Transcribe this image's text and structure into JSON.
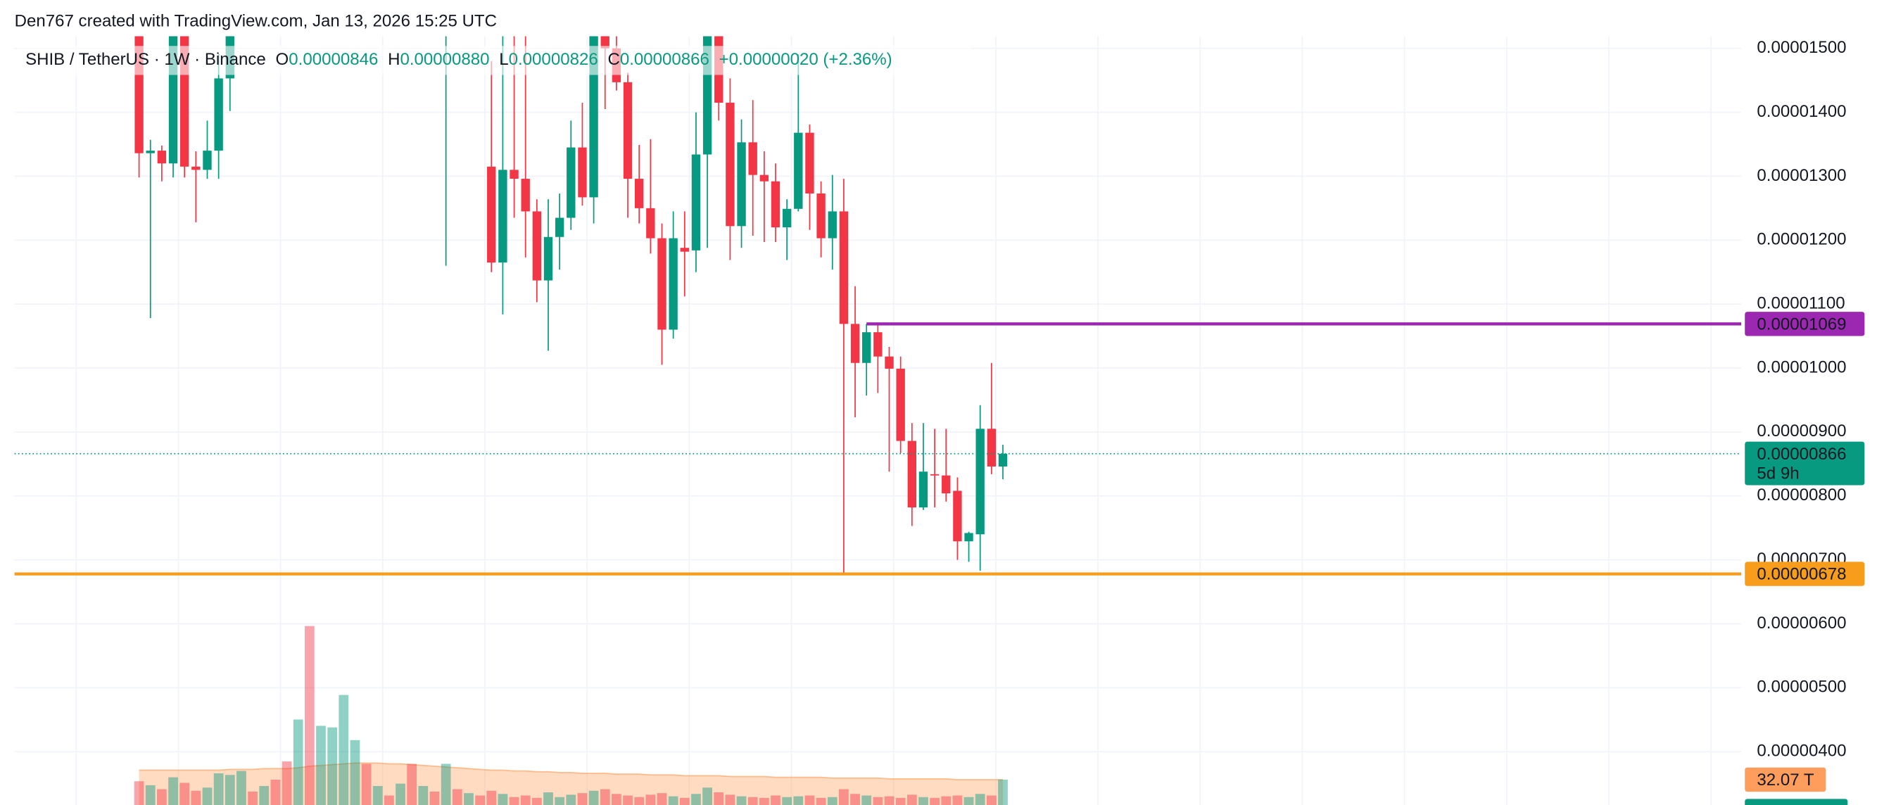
{
  "header": {
    "credit": "Den767 created with TradingView.com, Jan 13, 2026 15:25 UTC"
  },
  "chart_data": {
    "type": "candlestick",
    "symbol": "SHIB / TetherUS · 1W · Binance",
    "legend": {
      "o_label": "O",
      "open": "0.00000846",
      "h_label": "H",
      "high": "0.00000880",
      "l_label": "L",
      "low": "0.00000826",
      "c_label": "C",
      "close": "0.00000866",
      "change": "+0.00000020 (+2.36%)"
    },
    "open": [
      1.53e-05,
      1.336e-05,
      1.34e-05,
      1.32e-05,
      1.52e-05,
      1.315e-05,
      1.31e-05,
      1.34e-05,
      1.453e-05,
      null,
      null,
      null,
      null,
      null,
      null,
      null,
      null,
      null,
      null,
      null,
      null,
      null,
      null,
      null,
      null,
      null,
      null,
      1.53e-05,
      null,
      null,
      null,
      1.315e-05,
      1.165e-05,
      1.31e-05,
      1.296e-05,
      1.245e-05,
      1.137e-05,
      1.205e-05,
      1.235e-05,
      1.345e-05,
      1.267e-05,
      1.52e-05,
      1.5e-05,
      1.447e-05,
      1.296e-05,
      1.25e-05,
      1.203e-05,
      1.06e-05,
      1.188e-05,
      1.184e-05,
      1.334e-05,
      1.52e-05,
      1.415e-05,
      1.222e-05,
      1.353e-05,
      1.302e-05,
      1.292e-05,
      1.22e-05,
      1.249e-05,
      1.368e-05,
      1.273e-05,
      1.203e-05,
      1.245e-05,
      1.069e-05,
      1.008e-05,
      1.056e-05,
      1.018e-05,
      9.99e-06,
      8.86e-06,
      7.82e-06,
      8.34e-06,
      8.32e-06,
      8.08e-06,
      7.29e-06,
      7.4e-06,
      9.05e-06,
      8.46e-06
    ],
    "high": [
      1.56e-05,
      1.357e-05,
      1.348e-05,
      1.55e-05,
      1.55e-05,
      1.339e-05,
      1.387e-05,
      1.491e-05,
      1.54e-05,
      null,
      null,
      null,
      null,
      null,
      null,
      null,
      null,
      null,
      null,
      null,
      null,
      null,
      null,
      null,
      null,
      null,
      null,
      1.58e-05,
      null,
      null,
      null,
      1.48e-05,
      1.53e-05,
      1.53e-05,
      1.52e-05,
      1.264e-05,
      1.264e-05,
      1.273e-05,
      1.387e-05,
      1.415e-05,
      1.54e-05,
      1.53e-05,
      1.52e-05,
      1.462e-05,
      1.349e-05,
      1.358e-05,
      1.226e-05,
      1.245e-05,
      1.245e-05,
      1.4e-05,
      1.54e-05,
      1.53e-05,
      1.453e-05,
      1.389e-05,
      1.419e-05,
      1.339e-05,
      1.32e-05,
      1.264e-05,
      1.491e-05,
      1.381e-05,
      1.292e-05,
      1.302e-05,
      1.296e-05,
      1.128e-05,
      1.069e-05,
      1.069e-05,
      1.033e-05,
      1.018e-05,
      9.14e-06,
      9.14e-06,
      9.05e-06,
      9.05e-06,
      8.29e-06,
      7.44e-06,
      9.42e-06,
      1.008e-05,
      8.8e-06
    ],
    "low": [
      1.298e-05,
      1.078e-05,
      1.292e-05,
      1.298e-05,
      1.298e-05,
      1.228e-05,
      1.296e-05,
      1.296e-05,
      1.402e-05,
      null,
      null,
      null,
      null,
      null,
      null,
      null,
      null,
      null,
      null,
      null,
      null,
      null,
      null,
      null,
      null,
      null,
      null,
      1.16e-05,
      null,
      null,
      null,
      1.15e-05,
      1.084e-05,
      1.235e-05,
      1.173e-05,
      1.103e-05,
      1.027e-05,
      1.154e-05,
      1.216e-05,
      1.254e-05,
      1.226e-05,
      1.405e-05,
      1.434e-05,
      1.235e-05,
      1.226e-05,
      1.179e-05,
      1.005e-05,
      1.046e-05,
      1.112e-05,
      1.15e-05,
      1.188e-05,
      1.387e-05,
      1.169e-05,
      1.188e-05,
      1.207e-05,
      1.197e-05,
      1.197e-05,
      1.169e-05,
      1.245e-05,
      1.216e-05,
      1.173e-05,
      1.154e-05,
      6.78e-06,
      9.23e-06,
      9.57e-06,
      9.61e-06,
      8.38e-06,
      8.67e-06,
      7.53e-06,
      7.78e-06,
      7.82e-06,
      7.91e-06,
      7e-06,
      6.97e-06,
      6.83e-06,
      8.34e-06,
      8.26e-06
    ],
    "close": [
      1.336e-05,
      1.34e-05,
      1.32e-05,
      1.52e-05,
      1.315e-05,
      1.31e-05,
      1.34e-05,
      1.453e-05,
      1.52e-05,
      null,
      null,
      null,
      null,
      null,
      null,
      null,
      null,
      null,
      null,
      null,
      null,
      null,
      null,
      null,
      null,
      null,
      null,
      1.56e-05,
      null,
      null,
      null,
      1.165e-05,
      1.31e-05,
      1.296e-05,
      1.245e-05,
      1.137e-05,
      1.205e-05,
      1.235e-05,
      1.345e-05,
      1.267e-05,
      1.52e-05,
      1.5e-05,
      1.447e-05,
      1.296e-05,
      1.25e-05,
      1.203e-05,
      1.06e-05,
      1.203e-05,
      1.182e-05,
      1.334e-05,
      1.52e-05,
      1.415e-05,
      1.222e-05,
      1.353e-05,
      1.302e-05,
      1.292e-05,
      1.22e-05,
      1.249e-05,
      1.368e-05,
      1.273e-05,
      1.203e-05,
      1.245e-05,
      1.069e-05,
      1.008e-05,
      1.056e-05,
      1.018e-05,
      9.99e-06,
      8.86e-06,
      7.82e-06,
      8.38e-06,
      8.32e-06,
      8.04e-06,
      7.29e-06,
      7.42e-06,
      9.05e-06,
      8.46e-06,
      8.66e-06
    ],
    "up_color": "#089981",
    "down_color": "#f23645",
    "ylim": [
      3.166e-06,
      1.5189e-05
    ],
    "yticks": [
      {
        "value": 4e-06,
        "label": "0.00000400"
      },
      {
        "value": 5e-06,
        "label": "0.00000500"
      },
      {
        "value": 6e-06,
        "label": "0.00000600"
      },
      {
        "value": 7e-06,
        "label": "0.00000700"
      },
      {
        "value": 8e-06,
        "label": "0.00000800"
      },
      {
        "value": 9e-06,
        "label": "0.00000900"
      },
      {
        "value": 1e-05,
        "label": "0.00001000"
      },
      {
        "value": 1.1e-05,
        "label": "0.00001100"
      },
      {
        "value": 1.2e-05,
        "label": "0.00001200"
      },
      {
        "value": 1.3e-05,
        "label": "0.00001300"
      },
      {
        "value": 1.4e-05,
        "label": "0.00001400"
      },
      {
        "value": 1.5e-05,
        "label": "0.00001500"
      }
    ],
    "grid": true,
    "levels": [
      {
        "value": 1.069e-05,
        "label": "0.00001069",
        "color": "#9c27b0",
        "start": 64
      },
      {
        "value": 6.78e-06,
        "label": "0.00000678",
        "color": "#f89c1c"
      }
    ],
    "last_price": {
      "value": 8.66e-06,
      "label": "0.00000866",
      "countdown": "5d 9h"
    },
    "volume": [
      30,
      25,
      20,
      35,
      28,
      18,
      22,
      40,
      38,
      43,
      17,
      24,
      32,
      55,
      108,
      226,
      100,
      98,
      139,
      82,
      52,
      24,
      12,
      27,
      52,
      24,
      17,
      52,
      20,
      15,
      12,
      18,
      14,
      10,
      12,
      9,
      16,
      10,
      13,
      15,
      18,
      20,
      14,
      12,
      10,
      13,
      15,
      11,
      9,
      14,
      22,
      16,
      13,
      11,
      10,
      9,
      12,
      10,
      11,
      12,
      9,
      10,
      20,
      14,
      12,
      10,
      11,
      9,
      13,
      10,
      9,
      11,
      12,
      10,
      14,
      12,
      32.07
    ],
    "volume_up": [
      false,
      true,
      false,
      true,
      false,
      false,
      true,
      true,
      true,
      true,
      false,
      true,
      false,
      false,
      true,
      false,
      true,
      true,
      true,
      true,
      false,
      true,
      false,
      true,
      false,
      true,
      false,
      true,
      false,
      true,
      false,
      false,
      true,
      false,
      false,
      false,
      true,
      true,
      true,
      false,
      true,
      false,
      false,
      false,
      false,
      false,
      false,
      true,
      false,
      true,
      true,
      false,
      false,
      true,
      false,
      false,
      false,
      true,
      true,
      false,
      false,
      true,
      false,
      false,
      true,
      false,
      false,
      false,
      false,
      true,
      false,
      false,
      false,
      true,
      true,
      false,
      true
    ],
    "volume_ma": [
      44,
      44,
      44,
      44,
      44,
      44,
      44,
      44,
      45,
      45,
      45,
      46,
      46,
      46,
      47,
      49,
      50,
      51,
      52,
      53,
      53,
      53,
      52,
      52,
      51,
      50,
      49,
      48,
      47,
      46,
      45,
      44,
      44,
      43,
      43,
      42,
      42,
      41,
      41,
      40,
      40,
      40,
      39,
      39,
      39,
      38,
      38,
      38,
      37,
      37,
      37,
      37,
      36,
      36,
      36,
      36,
      35,
      35,
      35,
      35,
      35,
      34,
      34,
      34,
      34,
      34,
      33,
      33,
      33,
      33,
      33,
      33,
      32,
      32,
      32,
      32,
      32
    ],
    "volume_ylim": [
      0,
      971
    ],
    "volume_label": {
      "value": 32.07,
      "label": "32.07 T"
    }
  }
}
